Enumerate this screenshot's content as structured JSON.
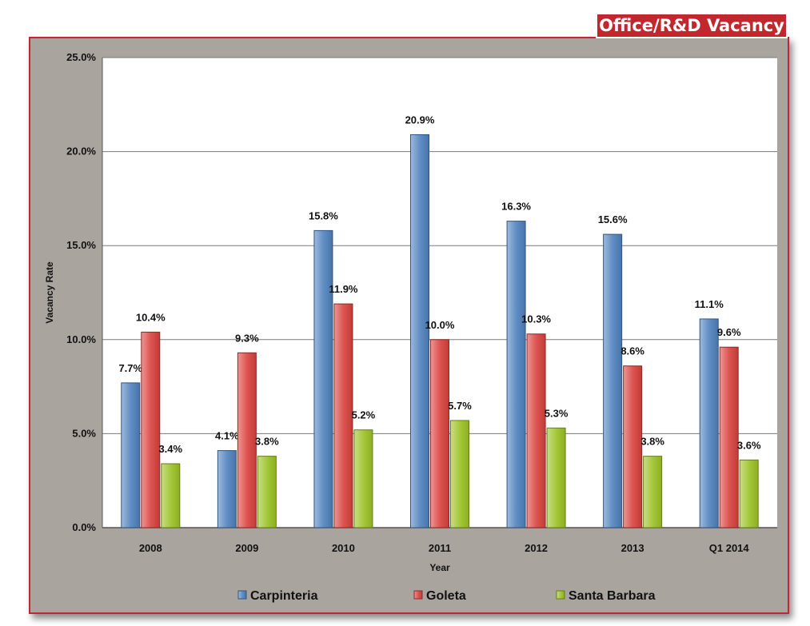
{
  "badge_title": "Office/R&D Vacancy",
  "colors": {
    "accent": "#c1272d",
    "frame_bg": "#aaa49f",
    "plot_bg": "#ffffff"
  },
  "chart_data": {
    "type": "bar",
    "title": "Office/R&D Vacancy",
    "xlabel": "Year",
    "ylabel": "Vacancy Rate",
    "categories": [
      "2008",
      "2009",
      "2010",
      "2011",
      "2012",
      "2013",
      "Q1 2014"
    ],
    "series": [
      {
        "name": "Carpinteria",
        "color": "#4f81bd",
        "values": [
          7.7,
          4.1,
          15.8,
          20.9,
          16.3,
          15.6,
          11.1
        ]
      },
      {
        "name": "Goleta",
        "color": "#d9413e",
        "values": [
          10.4,
          9.3,
          11.9,
          10.0,
          10.3,
          8.6,
          9.6
        ]
      },
      {
        "name": "Santa Barbara",
        "color": "#9bc225",
        "values": [
          3.4,
          3.8,
          5.2,
          5.7,
          5.3,
          3.8,
          3.6
        ]
      }
    ],
    "ylim": [
      0,
      25
    ],
    "yticks": [
      "0.0%",
      "5.0%",
      "10.0%",
      "15.0%",
      "20.0%",
      "25.0%"
    ],
    "bar_labels": [
      [
        "7.7%",
        "4.1%",
        "15.8%",
        "20.9%",
        "16.3%",
        "15.6%",
        "11.1%"
      ],
      [
        "10.4%",
        "9.3%",
        "11.9%",
        "10.0%",
        "10.3%",
        "8.6%",
        "9.6%"
      ],
      [
        "3.4%",
        "3.8%",
        "5.2%",
        "5.7%",
        "5.3%",
        "3.8%",
        "3.6%"
      ]
    ],
    "grid": true,
    "legend": "bottom"
  }
}
